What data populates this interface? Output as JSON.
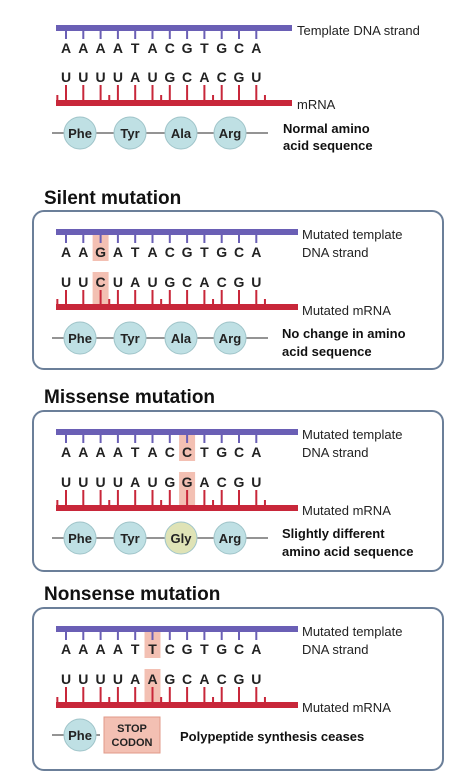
{
  "sections": [
    {
      "title": "",
      "framed": false,
      "template_label": [
        "Template DNA strand"
      ],
      "template": [
        "A",
        "A",
        "A",
        "A",
        "T",
        "A",
        "C",
        "G",
        "T",
        "G",
        "C",
        "A"
      ],
      "mrna_label": "mRNA",
      "mrna": [
        "U",
        "U",
        "U",
        "U",
        "A",
        "U",
        "G",
        "C",
        "A",
        "C",
        "G",
        "U"
      ],
      "highlight": -1,
      "amino_acids": [
        "Phe",
        "Tyr",
        "Ala",
        "Arg"
      ],
      "changed_aa": -1,
      "stop_codon": null,
      "note": [
        "Normal amino",
        "acid sequence"
      ]
    },
    {
      "title": "Silent mutation",
      "framed": true,
      "template_label": [
        "Mutated template",
        "DNA strand"
      ],
      "template": [
        "A",
        "A",
        "G",
        "A",
        "T",
        "A",
        "C",
        "G",
        "T",
        "G",
        "C",
        "A"
      ],
      "mrna_label": "Mutated mRNA",
      "mrna": [
        "U",
        "U",
        "C",
        "U",
        "A",
        "U",
        "G",
        "C",
        "A",
        "C",
        "G",
        "U"
      ],
      "highlight": 2,
      "amino_acids": [
        "Phe",
        "Tyr",
        "Ala",
        "Arg"
      ],
      "changed_aa": -1,
      "stop_codon": null,
      "note": [
        "No change in amino",
        "acid sequence"
      ]
    },
    {
      "title": "Missense mutation",
      "framed": true,
      "template_label": [
        "Mutated template",
        "DNA strand"
      ],
      "template": [
        "A",
        "A",
        "A",
        "A",
        "T",
        "A",
        "C",
        "C",
        "T",
        "G",
        "C",
        "A"
      ],
      "mrna_label": "Mutated mRNA",
      "mrna": [
        "U",
        "U",
        "U",
        "U",
        "A",
        "U",
        "G",
        "G",
        "A",
        "C",
        "G",
        "U"
      ],
      "highlight": 7,
      "amino_acids": [
        "Phe",
        "Tyr",
        "Gly",
        "Arg"
      ],
      "changed_aa": 2,
      "stop_codon": null,
      "note": [
        "Slightly different",
        "amino acid sequence"
      ]
    },
    {
      "title": "Nonsense mutation",
      "framed": true,
      "template_label": [
        "Mutated template",
        "DNA strand"
      ],
      "template": [
        "A",
        "A",
        "A",
        "A",
        "T",
        "T",
        "C",
        "G",
        "T",
        "G",
        "C",
        "A"
      ],
      "mrna_label": "Mutated mRNA",
      "mrna": [
        "U",
        "U",
        "U",
        "U",
        "A",
        "A",
        "G",
        "C",
        "A",
        "C",
        "G",
        "U"
      ],
      "highlight": 5,
      "amino_acids": [
        "Phe"
      ],
      "changed_aa": -1,
      "stop_codon": [
        "STOP",
        "CODON"
      ],
      "note": [
        "Polypeptide synthesis ceases"
      ]
    }
  ],
  "colors": {
    "dna_strand": "#6a5fb5",
    "mrna_strand": "#c8273a",
    "amino_normal": "#bfe0e4",
    "amino_changed": "#dfe3b6",
    "mutation_highlight": "#f3c0b3",
    "panel_border": "#6b7f99"
  }
}
